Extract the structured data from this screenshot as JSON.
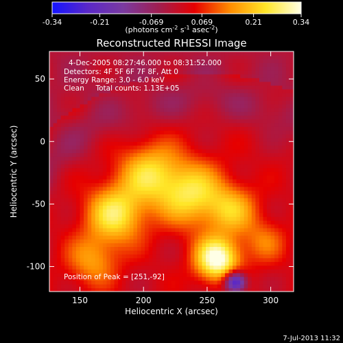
{
  "chart_data": {
    "type": "heatmap",
    "title": "Reconstructed RHESSI Image",
    "xlabel": "Heliocentric X (arcsec)",
    "ylabel": "Heliocentric Y (arcsec)",
    "xlim": [
      126,
      318
    ],
    "ylim": [
      -120,
      72
    ],
    "xticks": [
      150,
      200,
      250,
      300
    ],
    "yticks": [
      -100,
      -50,
      0,
      50
    ],
    "colorbar": {
      "range": [
        -0.34,
        0.34
      ],
      "ticks": [
        "-0.34",
        "-0.21",
        "-0.069",
        "0.069",
        "0.21",
        "0.34"
      ],
      "tick_values": [
        -0.34,
        -0.21,
        -0.069,
        0.069,
        0.21,
        0.34
      ],
      "unit_main": "(photons cm",
      "unit_sup1": "-2",
      "unit_mid": " s",
      "unit_sup2": "-1",
      "unit_mid2": " asec",
      "unit_sup3": "-2",
      "unit_end": ")",
      "colors": [
        "#1414ff",
        "#5a28c8",
        "#7a3aa0",
        "#a01e50",
        "#e60000",
        "#ff8c00",
        "#ffe628",
        "#ffffe6"
      ]
    },
    "annotations": [
      "4-Dec-2005 08:27:46.000 to 08:31:52.000",
      "Detectors: 4F 5F 6F 7F 8F, Att 0",
      "Energy Range: 3.0 - 6.0 keV",
      "Clean     Total counts: 1.13E+05"
    ],
    "peak_label": "Position of Peak = [251,-92]",
    "peak": [
      251,
      -92
    ],
    "sources": [
      {
        "x": 258,
        "y": -94,
        "amp": 0.34,
        "sigma": 12
      },
      {
        "x": 178,
        "y": -58,
        "amp": 0.24,
        "sigma": 16
      },
      {
        "x": 238,
        "y": -42,
        "amp": 0.22,
        "sigma": 18
      },
      {
        "x": 205,
        "y": -25,
        "amp": 0.2,
        "sigma": 17
      },
      {
        "x": 270,
        "y": -55,
        "amp": 0.16,
        "sigma": 14
      },
      {
        "x": 160,
        "y": -95,
        "amp": 0.14,
        "sigma": 14
      },
      {
        "x": 295,
        "y": -80,
        "amp": 0.1,
        "sigma": 12
      },
      {
        "x": 272,
        "y": -112,
        "amp": -0.34,
        "sigma": 6
      }
    ],
    "ring": {
      "cx": 245,
      "cy": -130,
      "radius": 165,
      "width": 18,
      "amp": -0.06,
      "base": 0.02
    }
  },
  "timestamp": "7-Jul-2013 11:32"
}
